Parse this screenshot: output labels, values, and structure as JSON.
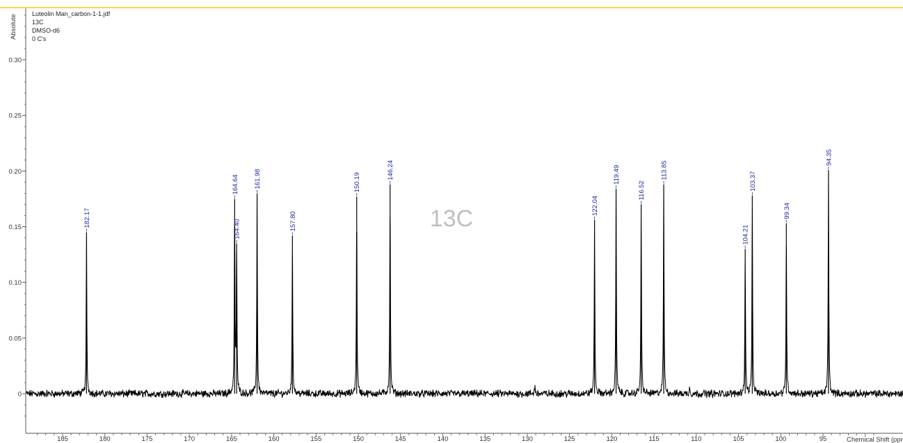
{
  "header": {
    "file": "Luteolin Man_carbon-1-1.jdf",
    "nucleus": "13C",
    "solvent": "DMSO-d6",
    "carbons": "0 C's"
  },
  "watermark": "13C",
  "colors": {
    "spectrum_line": "#000000",
    "peak_label": "#1f2aa0",
    "top_border": "#ffd54f",
    "axis": "#555555"
  },
  "chart_data": {
    "type": "line",
    "xlabel": "Chemical Shift (ppm)",
    "ylabel": "Absolute",
    "x_reversed": true,
    "xlim": [
      188.5,
      88.5
    ],
    "ylim": [
      -0.03,
      0.345
    ],
    "x_ticks": [
      185,
      180,
      175,
      170,
      165,
      160,
      155,
      150,
      145,
      140,
      135,
      130,
      125,
      120,
      115,
      110,
      105,
      100,
      95
    ],
    "y_ticks": [
      0,
      0.05,
      0.1,
      0.15,
      0.2,
      0.25,
      0.3
    ],
    "y_tick_labels": [
      "0",
      "0.05",
      "0.10",
      "0.15",
      "0.20",
      "0.25",
      "0.30"
    ],
    "peaks": [
      {
        "ppm": 182.17,
        "label": "182.17",
        "height": 0.145
      },
      {
        "ppm": 164.64,
        "label": "164.64",
        "height": 0.175
      },
      {
        "ppm": 164.4,
        "label": "164.40",
        "height": 0.135
      },
      {
        "ppm": 161.98,
        "label": "161.98",
        "height": 0.18
      },
      {
        "ppm": 157.8,
        "label": "157.80",
        "height": 0.142
      },
      {
        "ppm": 150.19,
        "label": "150.19",
        "height": 0.177
      },
      {
        "ppm": 146.24,
        "label": "146.24",
        "height": 0.188
      },
      {
        "ppm": 122.04,
        "label": "122.04",
        "height": 0.156
      },
      {
        "ppm": 119.49,
        "label": "119.49",
        "height": 0.184
      },
      {
        "ppm": 116.52,
        "label": "116.52",
        "height": 0.17
      },
      {
        "ppm": 113.85,
        "label": "113.85",
        "height": 0.188
      },
      {
        "ppm": 104.21,
        "label": "104.21",
        "height": 0.13
      },
      {
        "ppm": 103.37,
        "label": "103.37",
        "height": 0.178
      },
      {
        "ppm": 99.34,
        "label": "99.34",
        "height": 0.153
      },
      {
        "ppm": 94.35,
        "label": "94.35",
        "height": 0.201
      }
    ],
    "minor_peaks": [
      {
        "ppm": 129.1,
        "height": 0.008
      },
      {
        "ppm": 110.8,
        "height": 0.006
      }
    ],
    "grid": false,
    "legend": "none"
  }
}
